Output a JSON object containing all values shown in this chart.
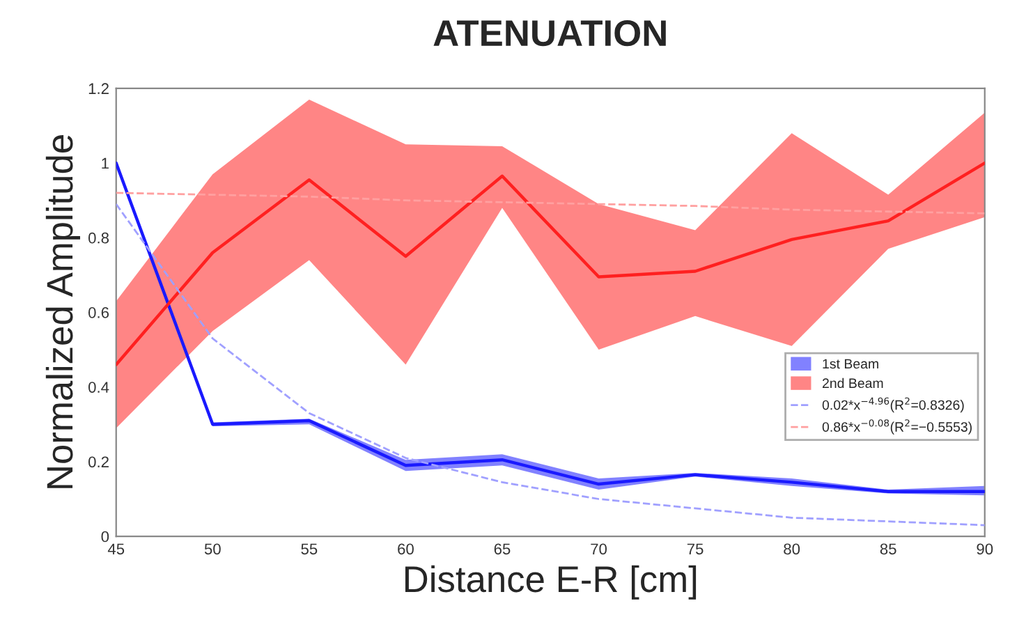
{
  "chart_data": {
    "type": "line",
    "title": "ATENUATION",
    "xlabel": "Distance E-R [cm]",
    "ylabel": "Normalized Amplitude",
    "x": [
      45,
      50,
      55,
      60,
      65,
      70,
      75,
      80,
      85,
      90
    ],
    "series": [
      {
        "name": "1st Beam",
        "color": "#1a1aff",
        "values": [
          1.0,
          0.3,
          0.31,
          0.19,
          0.205,
          0.14,
          0.165,
          0.145,
          0.12,
          0.12
        ],
        "lower": [
          1.0,
          0.295,
          0.3,
          0.175,
          0.19,
          0.125,
          0.16,
          0.135,
          0.115,
          0.11
        ],
        "upper": [
          1.0,
          0.305,
          0.315,
          0.205,
          0.22,
          0.155,
          0.17,
          0.155,
          0.125,
          0.135
        ]
      },
      {
        "name": "2nd Beam",
        "color": "#ff2020",
        "values": [
          0.46,
          0.76,
          0.955,
          0.75,
          0.965,
          0.695,
          0.71,
          0.795,
          0.845,
          1.0
        ],
        "lower": [
          0.29,
          0.55,
          0.74,
          0.46,
          0.88,
          0.5,
          0.59,
          0.51,
          0.77,
          0.855
        ],
        "upper": [
          0.63,
          0.97,
          1.17,
          1.05,
          1.045,
          0.89,
          0.82,
          1.08,
          0.915,
          1.135
        ]
      },
      {
        "name": "0.02*x$^{−4.96}$(R$^{2}$=0.8326)",
        "color": "#a0a0ff",
        "line_style": "dashed",
        "values": [
          0.89,
          0.53,
          0.33,
          0.21,
          0.145,
          0.1,
          0.075,
          0.05,
          0.04,
          0.03
        ]
      },
      {
        "name": "0.86*x$^{−0.08}$(R$^{2}$=−0.5553)",
        "color": "#ffa0a0",
        "line_style": "dashed",
        "values": [
          0.92,
          0.915,
          0.91,
          0.9,
          0.895,
          0.89,
          0.885,
          0.875,
          0.87,
          0.865
        ]
      }
    ],
    "xlim": [
      45,
      90
    ],
    "xticks": [
      45,
      50,
      55,
      60,
      65,
      70,
      75,
      80,
      85,
      90
    ],
    "ylim": [
      0,
      1.2
    ],
    "yticks": [
      0,
      0.2,
      0.4,
      0.6,
      0.8,
      1,
      1.2
    ],
    "grid": false,
    "legend": "bottom right",
    "marker": "none"
  }
}
